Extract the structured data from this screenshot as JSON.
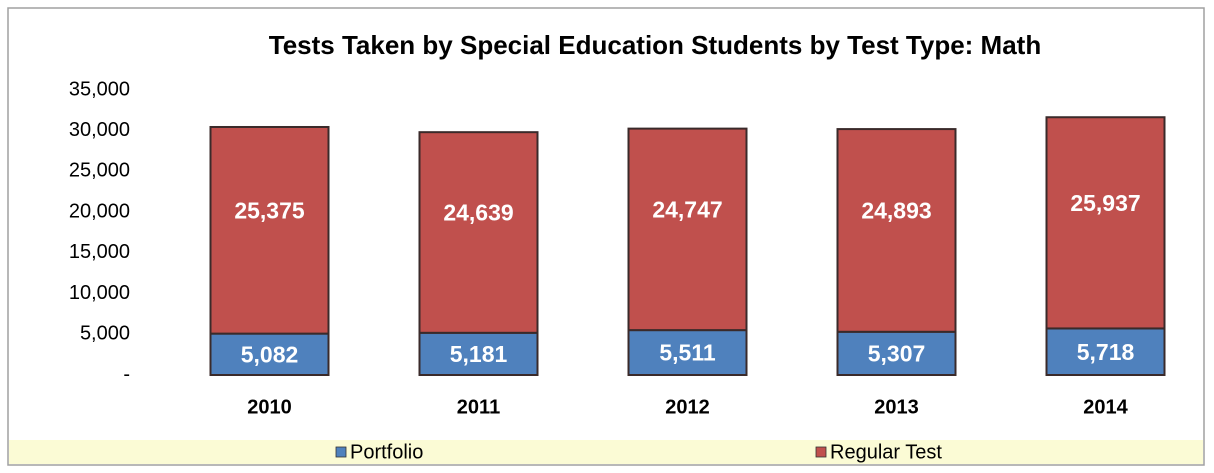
{
  "chart_data": {
    "type": "stacked_bar",
    "title": "Tests Taken by Special Education Students by Test Type: Math",
    "categories": [
      "2010",
      "2011",
      "2012",
      "2013",
      "2014"
    ],
    "series": [
      {
        "name": "Portfolio",
        "color": "#4f81bd",
        "values": [
          5082,
          5181,
          5511,
          5307,
          5718
        ],
        "value_labels": [
          "5,082",
          "5,181",
          "5,511",
          "5,307",
          "5,718"
        ]
      },
      {
        "name": "Regular Test",
        "color": "#c0504d",
        "values": [
          25375,
          24639,
          24747,
          24893,
          25937
        ],
        "value_labels": [
          "25,375",
          "24,639",
          "24,747",
          "24,893",
          "25,937"
        ]
      }
    ],
    "ylim": [
      0,
      35000
    ],
    "yticks": [
      {
        "value": 0,
        "label": "-"
      },
      {
        "value": 5000,
        "label": "5,000"
      },
      {
        "value": 10000,
        "label": "10,000"
      },
      {
        "value": 15000,
        "label": "15,000"
      },
      {
        "value": 20000,
        "label": "20,000"
      },
      {
        "value": 25000,
        "label": "25,000"
      },
      {
        "value": 30000,
        "label": "30,000"
      },
      {
        "value": 35000,
        "label": "35,000"
      }
    ],
    "grid": false,
    "legend": "bottom"
  }
}
